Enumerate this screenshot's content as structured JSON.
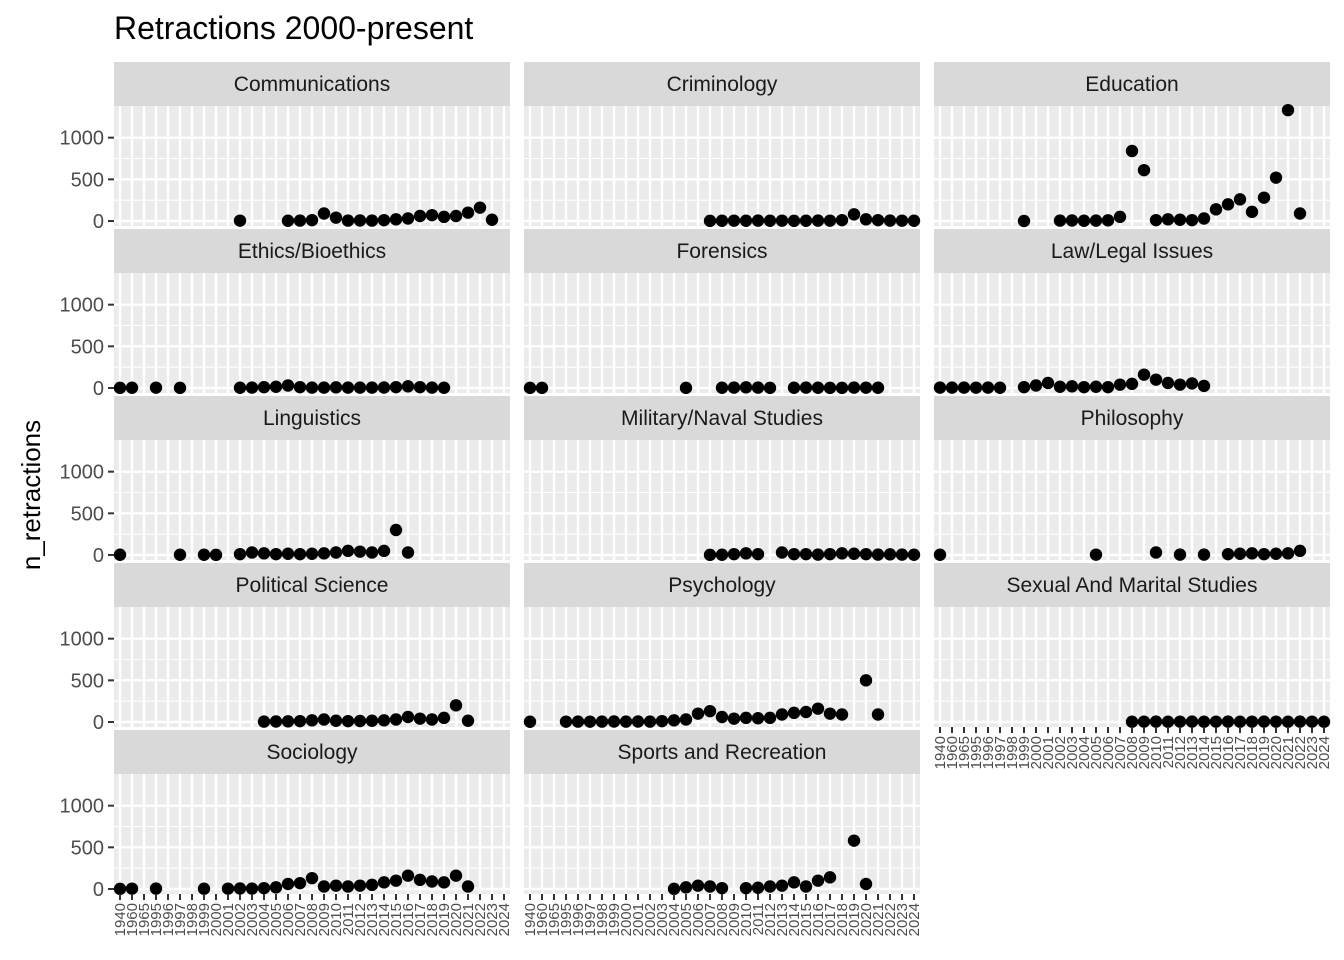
{
  "chart_data": {
    "type": "scatter",
    "title": "Retractions 2000-present",
    "xlabel": "",
    "ylabel": "n_retractions",
    "x_categories": [
      "1940",
      "1960",
      "1965",
      "1995",
      "1996",
      "1997",
      "1998",
      "1999",
      "2000",
      "2001",
      "2002",
      "2003",
      "2004",
      "2005",
      "2006",
      "2007",
      "2008",
      "2009",
      "2010",
      "2011",
      "2012",
      "2013",
      "2014",
      "2015",
      "2016",
      "2017",
      "2018",
      "2019",
      "2020",
      "2021",
      "2022",
      "2023",
      "2024"
    ],
    "y_ticks": [
      0,
      500,
      1000
    ],
    "ylim": [
      -60,
      1380
    ],
    "grid": true,
    "facet_columns": 3,
    "panels": [
      {
        "name": "Communications",
        "points": [
          [
            2002,
            4
          ],
          [
            2006,
            3
          ],
          [
            2007,
            5
          ],
          [
            2008,
            10
          ],
          [
            2009,
            90
          ],
          [
            2010,
            40
          ],
          [
            2011,
            5
          ],
          [
            2012,
            6
          ],
          [
            2013,
            5
          ],
          [
            2014,
            10
          ],
          [
            2015,
            20
          ],
          [
            2016,
            30
          ],
          [
            2017,
            60
          ],
          [
            2018,
            70
          ],
          [
            2019,
            50
          ],
          [
            2020,
            60
          ],
          [
            2021,
            100
          ],
          [
            2022,
            160
          ],
          [
            2023,
            15
          ]
        ]
      },
      {
        "name": "Criminology",
        "points": [
          [
            2007,
            2
          ],
          [
            2008,
            3
          ],
          [
            2009,
            4
          ],
          [
            2010,
            3
          ],
          [
            2011,
            5
          ],
          [
            2012,
            3
          ],
          [
            2013,
            4
          ],
          [
            2014,
            2
          ],
          [
            2015,
            3
          ],
          [
            2016,
            5
          ],
          [
            2017,
            4
          ],
          [
            2018,
            10
          ],
          [
            2019,
            80
          ],
          [
            2020,
            20
          ],
          [
            2021,
            10
          ],
          [
            2022,
            5
          ],
          [
            2023,
            4
          ],
          [
            2024,
            3
          ]
        ]
      },
      {
        "name": "Education",
        "points": [
          [
            1999,
            0
          ],
          [
            2002,
            5
          ],
          [
            2003,
            6
          ],
          [
            2004,
            3
          ],
          [
            2005,
            5
          ],
          [
            2006,
            8
          ],
          [
            2007,
            50
          ],
          [
            2008,
            840
          ],
          [
            2009,
            610
          ],
          [
            2010,
            10
          ],
          [
            2011,
            20
          ],
          [
            2012,
            15
          ],
          [
            2013,
            10
          ],
          [
            2014,
            30
          ],
          [
            2015,
            140
          ],
          [
            2016,
            200
          ],
          [
            2017,
            260
          ],
          [
            2018,
            110
          ],
          [
            2019,
            280
          ],
          [
            2020,
            520
          ],
          [
            2021,
            1330
          ],
          [
            2022,
            90
          ]
        ]
      },
      {
        "name": "Ethics/Bioethics",
        "points": [
          [
            1940,
            2
          ],
          [
            1960,
            3
          ],
          [
            1995,
            4
          ],
          [
            1997,
            2
          ],
          [
            2002,
            3
          ],
          [
            2003,
            5
          ],
          [
            2004,
            10
          ],
          [
            2005,
            15
          ],
          [
            2006,
            30
          ],
          [
            2007,
            10
          ],
          [
            2008,
            5
          ],
          [
            2009,
            5
          ],
          [
            2010,
            8
          ],
          [
            2011,
            5
          ],
          [
            2012,
            5
          ],
          [
            2013,
            5
          ],
          [
            2014,
            6
          ],
          [
            2015,
            10
          ],
          [
            2016,
            20
          ],
          [
            2017,
            10
          ],
          [
            2018,
            5
          ],
          [
            2019,
            3
          ]
        ]
      },
      {
        "name": "Forensics",
        "points": [
          [
            1940,
            2
          ],
          [
            1960,
            2
          ],
          [
            2005,
            2
          ],
          [
            2008,
            3
          ],
          [
            2009,
            5
          ],
          [
            2010,
            8
          ],
          [
            2011,
            5
          ],
          [
            2012,
            2
          ],
          [
            2014,
            3
          ],
          [
            2015,
            5
          ],
          [
            2016,
            3
          ],
          [
            2017,
            2
          ],
          [
            2018,
            2
          ],
          [
            2019,
            5
          ],
          [
            2020,
            4
          ],
          [
            2021,
            3
          ]
        ]
      },
      {
        "name": "Law/Legal Issues",
        "points": [
          [
            1940,
            5
          ],
          [
            1960,
            5
          ],
          [
            1965,
            5
          ],
          [
            1995,
            4
          ],
          [
            1996,
            5
          ],
          [
            1997,
            3
          ],
          [
            1999,
            10
          ],
          [
            2000,
            30
          ],
          [
            2001,
            60
          ],
          [
            2002,
            15
          ],
          [
            2003,
            20
          ],
          [
            2004,
            10
          ],
          [
            2005,
            15
          ],
          [
            2006,
            10
          ],
          [
            2007,
            40
          ],
          [
            2008,
            50
          ],
          [
            2009,
            160
          ],
          [
            2010,
            100
          ],
          [
            2011,
            60
          ],
          [
            2012,
            40
          ],
          [
            2013,
            55
          ],
          [
            2014,
            25
          ]
        ]
      },
      {
        "name": "Linguistics",
        "points": [
          [
            1940,
            3
          ],
          [
            1997,
            3
          ],
          [
            1999,
            3
          ],
          [
            2000,
            2
          ],
          [
            2002,
            10
          ],
          [
            2003,
            30
          ],
          [
            2004,
            20
          ],
          [
            2005,
            10
          ],
          [
            2006,
            15
          ],
          [
            2007,
            10
          ],
          [
            2008,
            15
          ],
          [
            2009,
            20
          ],
          [
            2010,
            30
          ],
          [
            2011,
            50
          ],
          [
            2012,
            40
          ],
          [
            2013,
            30
          ],
          [
            2014,
            50
          ],
          [
            2015,
            300
          ],
          [
            2016,
            30
          ]
        ]
      },
      {
        "name": "Military/Naval Studies",
        "points": [
          [
            2007,
            2
          ],
          [
            2008,
            3
          ],
          [
            2009,
            10
          ],
          [
            2010,
            20
          ],
          [
            2011,
            10
          ],
          [
            2013,
            30
          ],
          [
            2014,
            10
          ],
          [
            2015,
            10
          ],
          [
            2016,
            5
          ],
          [
            2017,
            10
          ],
          [
            2018,
            20
          ],
          [
            2019,
            15
          ],
          [
            2020,
            10
          ],
          [
            2021,
            5
          ],
          [
            2022,
            8
          ],
          [
            2023,
            5
          ],
          [
            2024,
            3
          ]
        ]
      },
      {
        "name": "Philosophy",
        "points": [
          [
            1940,
            3
          ],
          [
            2005,
            4
          ],
          [
            2010,
            30
          ],
          [
            2012,
            5
          ],
          [
            2014,
            5
          ],
          [
            2016,
            10
          ],
          [
            2017,
            15
          ],
          [
            2018,
            20
          ],
          [
            2019,
            10
          ],
          [
            2020,
            15
          ],
          [
            2021,
            20
          ],
          [
            2022,
            50
          ]
        ]
      },
      {
        "name": "Political Science",
        "points": [
          [
            2004,
            5
          ],
          [
            2005,
            6
          ],
          [
            2006,
            8
          ],
          [
            2007,
            10
          ],
          [
            2008,
            20
          ],
          [
            2009,
            30
          ],
          [
            2010,
            15
          ],
          [
            2011,
            10
          ],
          [
            2012,
            12
          ],
          [
            2013,
            15
          ],
          [
            2014,
            20
          ],
          [
            2015,
            30
          ],
          [
            2016,
            60
          ],
          [
            2017,
            40
          ],
          [
            2018,
            30
          ],
          [
            2019,
            50
          ],
          [
            2020,
            200
          ],
          [
            2021,
            15
          ]
        ]
      },
      {
        "name": "Psychology",
        "points": [
          [
            1940,
            3
          ],
          [
            1995,
            4
          ],
          [
            1996,
            5
          ],
          [
            1997,
            4
          ],
          [
            1998,
            5
          ],
          [
            1999,
            6
          ],
          [
            2000,
            5
          ],
          [
            2001,
            6
          ],
          [
            2002,
            5
          ],
          [
            2003,
            10
          ],
          [
            2004,
            20
          ],
          [
            2005,
            30
          ],
          [
            2006,
            100
          ],
          [
            2007,
            130
          ],
          [
            2008,
            60
          ],
          [
            2009,
            40
          ],
          [
            2010,
            50
          ],
          [
            2011,
            45
          ],
          [
            2012,
            50
          ],
          [
            2013,
            90
          ],
          [
            2014,
            110
          ],
          [
            2015,
            120
          ],
          [
            2016,
            160
          ],
          [
            2017,
            100
          ],
          [
            2018,
            90
          ],
          [
            2020,
            500
          ],
          [
            2021,
            90
          ]
        ]
      },
      {
        "name": "Sexual And Marital Studies",
        "points": [
          [
            2008,
            3
          ],
          [
            2009,
            4
          ],
          [
            2010,
            5
          ],
          [
            2011,
            3
          ],
          [
            2012,
            4
          ],
          [
            2013,
            5
          ],
          [
            2014,
            3
          ],
          [
            2015,
            4
          ],
          [
            2016,
            5
          ],
          [
            2017,
            3
          ],
          [
            2018,
            4
          ],
          [
            2019,
            5
          ],
          [
            2020,
            4
          ],
          [
            2021,
            3
          ],
          [
            2022,
            5
          ],
          [
            2023,
            4
          ],
          [
            2024,
            3
          ]
        ]
      },
      {
        "name": "Sociology",
        "points": [
          [
            1940,
            2
          ],
          [
            1960,
            4
          ],
          [
            1995,
            5
          ],
          [
            1999,
            3
          ],
          [
            2001,
            4
          ],
          [
            2002,
            6
          ],
          [
            2003,
            5
          ],
          [
            2004,
            10
          ],
          [
            2005,
            20
          ],
          [
            2006,
            60
          ],
          [
            2007,
            70
          ],
          [
            2008,
            130
          ],
          [
            2009,
            30
          ],
          [
            2010,
            40
          ],
          [
            2011,
            30
          ],
          [
            2012,
            40
          ],
          [
            2013,
            50
          ],
          [
            2014,
            80
          ],
          [
            2015,
            100
          ],
          [
            2016,
            160
          ],
          [
            2017,
            110
          ],
          [
            2018,
            90
          ],
          [
            2019,
            80
          ],
          [
            2020,
            160
          ],
          [
            2021,
            30
          ]
        ]
      },
      {
        "name": "Sports and Recreation",
        "points": [
          [
            2004,
            2
          ],
          [
            2005,
            20
          ],
          [
            2006,
            40
          ],
          [
            2007,
            30
          ],
          [
            2008,
            10
          ],
          [
            2010,
            10
          ],
          [
            2011,
            15
          ],
          [
            2012,
            30
          ],
          [
            2013,
            40
          ],
          [
            2014,
            80
          ],
          [
            2015,
            30
          ],
          [
            2016,
            100
          ],
          [
            2017,
            140
          ],
          [
            2019,
            580
          ],
          [
            2020,
            60
          ]
        ]
      }
    ]
  }
}
